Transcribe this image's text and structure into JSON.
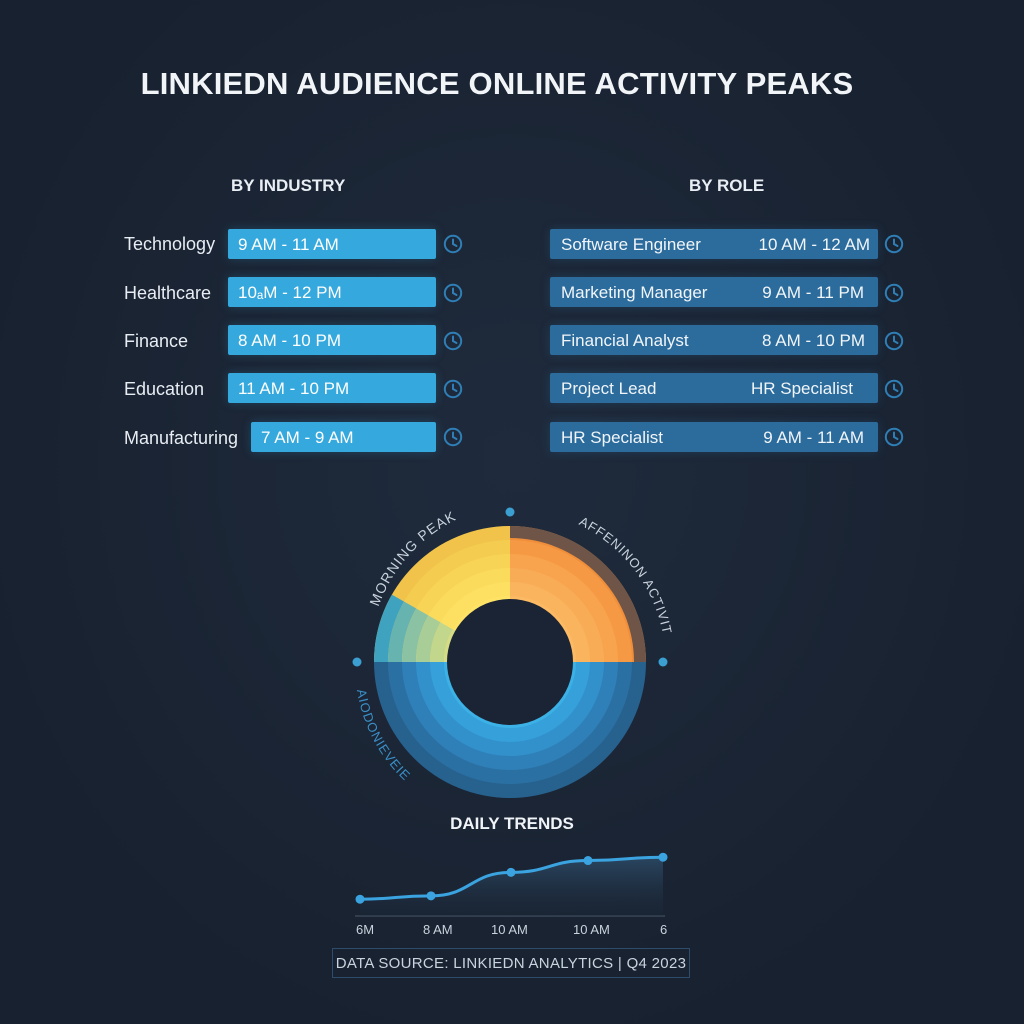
{
  "title": "LINKIEDN AUDIENCE ONLINE ACTIVITY PEAKS",
  "by_industry": {
    "heading": "BY INDUSTRY",
    "rows": [
      {
        "label": "Technology",
        "time": "9 AM - 11 AM"
      },
      {
        "label": "Healthcare",
        "time": "10ₐM - 12 PM"
      },
      {
        "label": "Finance",
        "time": "8 AM - 10 PM"
      },
      {
        "label": "Education",
        "time": "11 AM - 10 PM"
      },
      {
        "label": "Manufacturing",
        "time": "7 AM - 9 AM"
      }
    ]
  },
  "by_role": {
    "heading": "BY ROLE",
    "rows": [
      {
        "label": "Software Engineer",
        "time": "10 AM - 12 AM"
      },
      {
        "label": "Marketing Manager",
        "time": "9 AM - 11 PM"
      },
      {
        "label": "Financial Analyst",
        "time": "8 AM - 10 PM"
      },
      {
        "label": "Project Lead",
        "time": "HR Specialist"
      },
      {
        "label": "HR Specialist",
        "time": "9 AM - 11 AM"
      }
    ]
  },
  "donut": {
    "label_morning": "MORNING PEAK",
    "label_afternoon": "AFFENINON ACTIVITP",
    "label_bottom": "AIODONIEVEIEP"
  },
  "daily_trends": {
    "heading": "DAILY TRENDS",
    "tick_labels": [
      "6M",
      "8 AM",
      "10 AM",
      "10 AM",
      "6"
    ]
  },
  "source": "DATA SOURCE: LINKIEDN ANALYTICS | Q4 2023",
  "colors": {
    "industry_bar": "#35a9dd",
    "role_bar": "#2c6c9c",
    "line": "#3aa3e0"
  },
  "icons": {
    "row_icon": "clock-icon"
  },
  "chart_data": [
    {
      "type": "pie",
      "title": "",
      "categories": [
        "MORNING PEAK",
        "AFFENINON ACTIVITP",
        "AIODONIEVEIEP"
      ],
      "values": [
        0.25,
        0.25,
        0.5
      ]
    },
    {
      "type": "line",
      "title": "DAILY TRENDS",
      "x": [
        "6M",
        "8 AM",
        "10 AM",
        "10 AM",
        "6"
      ],
      "series": [
        {
          "values": [
            1.0,
            1.2,
            2.6,
            3.3,
            3.5
          ]
        }
      ],
      "ylim": [
        0,
        5
      ],
      "grid": false
    }
  ]
}
